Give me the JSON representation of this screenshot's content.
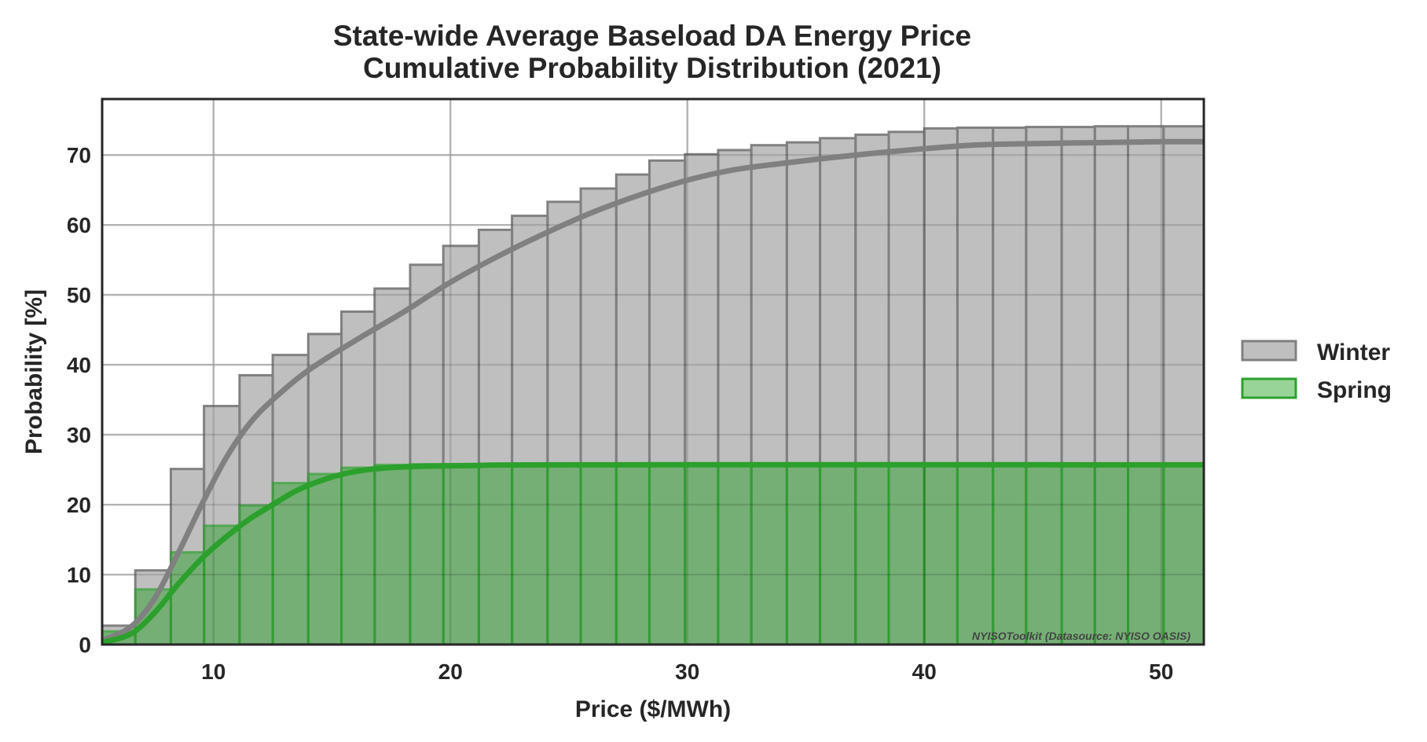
{
  "chart_data": {
    "type": "area",
    "title": [
      "State-wide Average Baseload DA Energy Price",
      "Cumulative Probability Distribution (2021)"
    ],
    "xlabel": "Price ($/MWh)",
    "ylabel": "Probability [%]",
    "xlim": [
      5.3,
      51.8
    ],
    "ylim": [
      0,
      78
    ],
    "xticks": [
      10,
      20,
      30,
      40,
      50
    ],
    "yticks": [
      0,
      10,
      20,
      30,
      40,
      50,
      60,
      70
    ],
    "grid": true,
    "legend_position": "right-center",
    "credit": "NYISOToolkit (Datasource: NYISO OASIS)",
    "bin_edges": [
      5.3,
      6.7,
      8.2,
      9.6,
      11.1,
      12.5,
      14.0,
      15.4,
      16.8,
      18.3,
      19.7,
      21.2,
      22.6,
      24.1,
      25.5,
      27.0,
      28.4,
      29.9,
      31.3,
      32.7,
      34.2,
      35.6,
      37.1,
      38.5,
      40.0,
      41.4,
      42.9,
      44.3,
      45.8,
      47.2,
      48.6,
      50.1,
      51.8
    ],
    "series": [
      {
        "name": "Winter",
        "color": "#808080",
        "fill": "#bfbfbf",
        "step_values": [
          2.7,
          10.6,
          25.1,
          34.1,
          38.5,
          41.4,
          44.4,
          47.6,
          50.9,
          54.3,
          57.0,
          59.3,
          61.3,
          63.3,
          65.2,
          67.2,
          69.2,
          70.1,
          70.7,
          71.4,
          71.8,
          72.4,
          72.9,
          73.3,
          73.8,
          73.9,
          73.9,
          74.0,
          74.0,
          74.1,
          74.1,
          74.1
        ],
        "curve": [
          [
            5.3,
            0.6
          ],
          [
            6.5,
            2.5
          ],
          [
            7.5,
            6.5
          ],
          [
            8.5,
            13.0
          ],
          [
            9.5,
            20.0
          ],
          [
            10.5,
            26.5
          ],
          [
            11.5,
            31.5
          ],
          [
            12.5,
            35.0
          ],
          [
            14.0,
            39.2
          ],
          [
            16.0,
            43.5
          ],
          [
            18.0,
            47.5
          ],
          [
            20.0,
            51.8
          ],
          [
            22.0,
            55.5
          ],
          [
            24.0,
            58.8
          ],
          [
            26.0,
            61.8
          ],
          [
            28.0,
            64.3
          ],
          [
            30.0,
            66.4
          ],
          [
            32.0,
            67.9
          ],
          [
            34.0,
            68.8
          ],
          [
            36.0,
            69.6
          ],
          [
            38.0,
            70.3
          ],
          [
            40.0,
            70.9
          ],
          [
            42.0,
            71.4
          ],
          [
            44.0,
            71.6
          ],
          [
            46.0,
            71.7
          ],
          [
            48.0,
            71.8
          ],
          [
            50.0,
            71.9
          ],
          [
            51.8,
            71.9
          ]
        ]
      },
      {
        "name": "Spring",
        "color": "#2ca02c",
        "fill": "#2ca02c",
        "step_values": [
          1.9,
          7.9,
          13.2,
          17.0,
          19.9,
          23.1,
          24.4,
          25.3,
          25.7,
          25.8,
          25.8,
          25.8,
          25.8,
          25.8,
          25.8,
          25.8,
          25.8,
          25.8,
          25.8,
          25.8,
          25.8,
          25.8,
          25.8,
          25.8,
          25.8,
          25.8,
          25.8,
          25.8,
          25.8,
          25.8,
          25.8,
          25.8
        ],
        "curve": [
          [
            5.3,
            0.3
          ],
          [
            6.5,
            1.5
          ],
          [
            7.5,
            4.5
          ],
          [
            8.5,
            8.6
          ],
          [
            9.5,
            12.3
          ],
          [
            10.5,
            15.3
          ],
          [
            11.5,
            17.9
          ],
          [
            12.5,
            20.0
          ],
          [
            13.5,
            22.0
          ],
          [
            14.5,
            23.4
          ],
          [
            15.5,
            24.4
          ],
          [
            16.5,
            25.0
          ],
          [
            17.5,
            25.3
          ],
          [
            19.0,
            25.5
          ],
          [
            21.0,
            25.6
          ],
          [
            25.0,
            25.7
          ],
          [
            51.8,
            25.7
          ]
        ]
      }
    ]
  }
}
